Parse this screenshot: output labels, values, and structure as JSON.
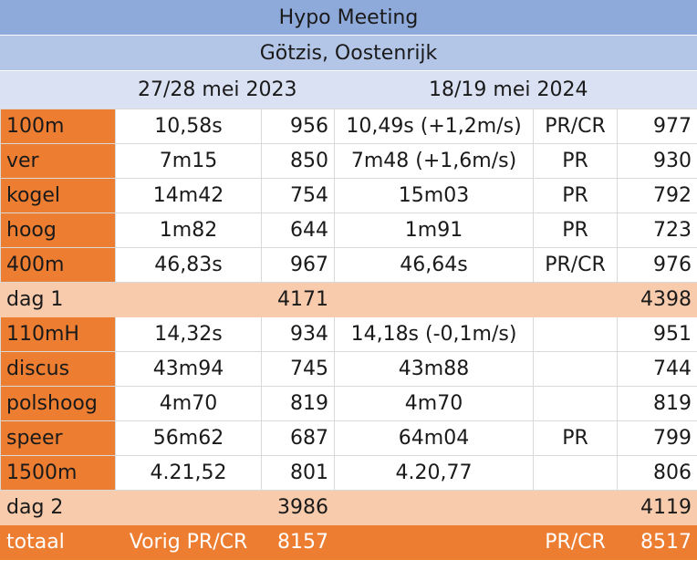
{
  "title": "Hypo Meeting",
  "subtitle": "Götzis, Oostenrijk",
  "header": {
    "col2023": "27/28 mei 2023",
    "col2024": "18/19 mei 2024"
  },
  "day1_events": [
    {
      "event": "100m",
      "r2023": "10,58s",
      "p2023": "956",
      "r2024": "10,49s (+1,2m/s)",
      "note": "PR/CR",
      "p2024": "977"
    },
    {
      "event": "ver",
      "r2023": "7m15",
      "p2023": "850",
      "r2024": "7m48 (+1,6m/s)",
      "note": "PR",
      "p2024": "930"
    },
    {
      "event": "kogel",
      "r2023": "14m42",
      "p2023": "754",
      "r2024": "15m03",
      "note": "PR",
      "p2024": "792"
    },
    {
      "event": "hoog",
      "r2023": "1m82",
      "p2023": "644",
      "r2024": "1m91",
      "note": "PR",
      "p2024": "723"
    },
    {
      "event": "400m",
      "r2023": "46,83s",
      "p2023": "967",
      "r2024": "46,64s",
      "note": "PR/CR",
      "p2024": "976"
    }
  ],
  "day1_total": {
    "label": "dag 1",
    "p2023": "4171",
    "p2024": "4398"
  },
  "day2_events": [
    {
      "event": "110mH",
      "r2023": "14,32s",
      "p2023": "934",
      "r2024": "14,18s (-0,1m/s)",
      "note": "",
      "p2024": "951"
    },
    {
      "event": "discus",
      "r2023": "43m94",
      "p2023": "745",
      "r2024": "43m88",
      "note": "",
      "p2024": "744"
    },
    {
      "event": "polshoog",
      "r2023": "4m70",
      "p2023": "819",
      "r2024": "4m70",
      "note": "",
      "p2024": "819"
    },
    {
      "event": "speer",
      "r2023": "56m62",
      "p2023": "687",
      "r2024": "64m04",
      "note": "PR",
      "p2024": "799"
    },
    {
      "event": "1500m",
      "r2023": "4.21,52",
      "p2023": "801",
      "r2024": "4.20,77",
      "note": "",
      "p2024": "806"
    }
  ],
  "day2_total": {
    "label": "dag 2",
    "p2023": "3986",
    "p2024": "4119"
  },
  "grand_total": {
    "label": "totaal",
    "note2023": "Vorig PR/CR",
    "p2023": "8157",
    "note2024": "PR/CR",
    "p2024": "8517"
  },
  "colors": {
    "orange": "#ed7d31",
    "peach": "#f8cbad",
    "blue_dark": "#8eaadb",
    "blue_mid": "#b4c6e7",
    "blue_light": "#d9e1f2"
  }
}
